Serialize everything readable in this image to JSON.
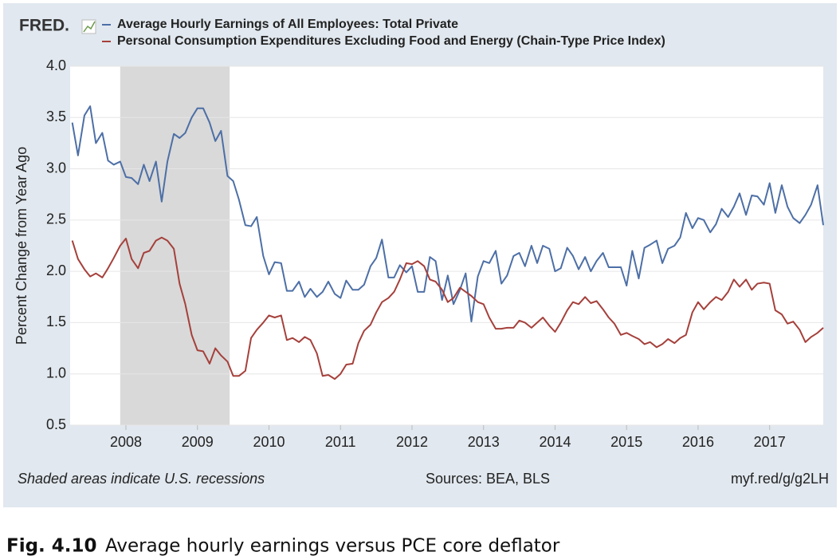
{
  "chart_data": {
    "type": "line",
    "logo": "FRED.",
    "ylabel": "Percent Change from Year Ago",
    "note": "Shaded areas indicate U.S. recessions",
    "source": "Sources: BEA, BLS",
    "link": "myf.red/g/g2LH",
    "xlim": [
      2007.22,
      2017.75
    ],
    "ylim": [
      0.5,
      4.0
    ],
    "xticks": [
      2008,
      2009,
      2010,
      2011,
      2012,
      2013,
      2014,
      2015,
      2016,
      2017
    ],
    "yticks": [
      0.5,
      {
        "value": 1.0,
        "label": "1.0"
      },
      1.5,
      {
        "value": 2.0,
        "label": "2.0"
      },
      2.5,
      {
        "value": 3.0,
        "label": "3.0"
      },
      3.5,
      {
        "value": 4.0,
        "label": "4.0"
      }
    ],
    "grid": true,
    "recessions": [
      [
        2007.92,
        2009.45
      ]
    ],
    "recession_color": "#d9d9d9",
    "x": [
      2007.25,
      2007.33,
      2007.42,
      2007.5,
      2007.58,
      2007.67,
      2007.75,
      2007.83,
      2007.92,
      2008.0,
      2008.08,
      2008.17,
      2008.25,
      2008.33,
      2008.42,
      2008.5,
      2008.58,
      2008.67,
      2008.75,
      2008.83,
      2008.92,
      2009.0,
      2009.08,
      2009.17,
      2009.25,
      2009.33,
      2009.42,
      2009.5,
      2009.58,
      2009.67,
      2009.75,
      2009.83,
      2009.92,
      2010.0,
      2010.08,
      2010.17,
      2010.25,
      2010.33,
      2010.42,
      2010.5,
      2010.58,
      2010.67,
      2010.75,
      2010.83,
      2010.92,
      2011.0,
      2011.08,
      2011.17,
      2011.25,
      2011.33,
      2011.42,
      2011.5,
      2011.58,
      2011.67,
      2011.75,
      2011.83,
      2011.92,
      2012.0,
      2012.08,
      2012.17,
      2012.25,
      2012.33,
      2012.42,
      2012.5,
      2012.58,
      2012.67,
      2012.75,
      2012.83,
      2012.92,
      2013.0,
      2013.08,
      2013.17,
      2013.25,
      2013.33,
      2013.42,
      2013.5,
      2013.58,
      2013.67,
      2013.75,
      2013.83,
      2013.92,
      2014.0,
      2014.08,
      2014.17,
      2014.25,
      2014.33,
      2014.42,
      2014.5,
      2014.58,
      2014.67,
      2014.75,
      2014.83,
      2014.92,
      2015.0,
      2015.08,
      2015.17,
      2015.25,
      2015.33,
      2015.42,
      2015.5,
      2015.58,
      2015.67,
      2015.75,
      2015.83,
      2015.92,
      2016.0,
      2016.08,
      2016.17,
      2016.25,
      2016.33,
      2016.42,
      2016.5,
      2016.58,
      2016.67,
      2016.75,
      2016.83,
      2016.92,
      2017.0,
      2017.08,
      2017.17,
      2017.25,
      2017.33,
      2017.42,
      2017.5,
      2017.58,
      2017.67,
      2017.75
    ],
    "series": [
      {
        "name": "Average Hourly Earnings of All Employees: Total Private",
        "color": "#4d6fa6",
        "values": [
          3.45,
          3.13,
          3.52,
          3.61,
          3.25,
          3.35,
          3.08,
          3.04,
          3.07,
          2.92,
          2.91,
          2.85,
          3.04,
          2.88,
          3.07,
          2.68,
          3.07,
          3.34,
          3.3,
          3.35,
          3.5,
          3.59,
          3.59,
          3.45,
          3.27,
          3.37,
          2.93,
          2.88,
          2.7,
          2.45,
          2.44,
          2.53,
          2.15,
          1.97,
          2.09,
          2.08,
          1.81,
          1.81,
          1.9,
          1.75,
          1.83,
          1.75,
          1.8,
          1.9,
          1.78,
          1.74,
          1.91,
          1.82,
          1.82,
          1.87,
          2.05,
          2.13,
          2.31,
          1.94,
          1.94,
          2.06,
          1.99,
          2.05,
          1.8,
          1.8,
          2.14,
          2.1,
          1.72,
          1.96,
          1.68,
          1.82,
          1.98,
          1.51,
          1.95,
          2.1,
          2.08,
          2.2,
          1.88,
          1.96,
          2.15,
          2.18,
          2.05,
          2.25,
          2.08,
          2.25,
          2.22,
          2.0,
          2.03,
          2.23,
          2.15,
          2.02,
          2.14,
          2.0,
          2.1,
          2.18,
          2.04,
          2.04,
          2.04,
          1.86,
          2.2,
          1.93,
          2.23,
          2.26,
          2.3,
          2.08,
          2.22,
          2.25,
          2.33,
          2.57,
          2.42,
          2.52,
          2.5,
          2.38,
          2.46,
          2.61,
          2.53,
          2.63,
          2.76,
          2.55,
          2.74,
          2.73,
          2.65,
          2.86,
          2.57,
          2.84,
          2.63,
          2.52,
          2.47,
          2.55,
          2.65,
          2.84,
          2.45
        ]
      },
      {
        "name": "Personal Consumption Expenditures Excluding Food and Energy (Chain-Type Price Index)",
        "color": "#a5403b",
        "values": [
          2.3,
          2.12,
          2.02,
          1.95,
          1.98,
          1.94,
          2.03,
          2.13,
          2.25,
          2.32,
          2.12,
          2.03,
          2.18,
          2.2,
          2.3,
          2.33,
          2.3,
          2.22,
          1.88,
          1.68,
          1.38,
          1.23,
          1.22,
          1.1,
          1.25,
          1.18,
          1.12,
          0.98,
          0.98,
          1.03,
          1.35,
          1.43,
          1.5,
          1.57,
          1.55,
          1.57,
          1.33,
          1.35,
          1.31,
          1.36,
          1.33,
          1.2,
          0.98,
          0.99,
          0.95,
          1.0,
          1.09,
          1.1,
          1.3,
          1.42,
          1.48,
          1.6,
          1.7,
          1.74,
          1.8,
          1.92,
          2.08,
          2.07,
          2.1,
          2.05,
          1.92,
          1.9,
          1.82,
          1.7,
          1.74,
          1.84,
          1.8,
          1.76,
          1.7,
          1.68,
          1.55,
          1.44,
          1.44,
          1.45,
          1.45,
          1.52,
          1.5,
          1.45,
          1.5,
          1.55,
          1.47,
          1.41,
          1.5,
          1.62,
          1.7,
          1.68,
          1.75,
          1.69,
          1.71,
          1.63,
          1.55,
          1.49,
          1.38,
          1.4,
          1.37,
          1.34,
          1.29,
          1.31,
          1.26,
          1.29,
          1.34,
          1.3,
          1.35,
          1.38,
          1.6,
          1.7,
          1.63,
          1.7,
          1.75,
          1.72,
          1.8,
          1.92,
          1.85,
          1.92,
          1.82,
          1.88,
          1.89,
          1.88,
          1.62,
          1.58,
          1.49,
          1.51,
          1.43,
          1.31,
          1.36,
          1.4,
          1.45
        ]
      }
    ]
  },
  "caption": {
    "label": "Fig. 4.10",
    "text": "Average hourly earnings versus PCE core deflator"
  }
}
